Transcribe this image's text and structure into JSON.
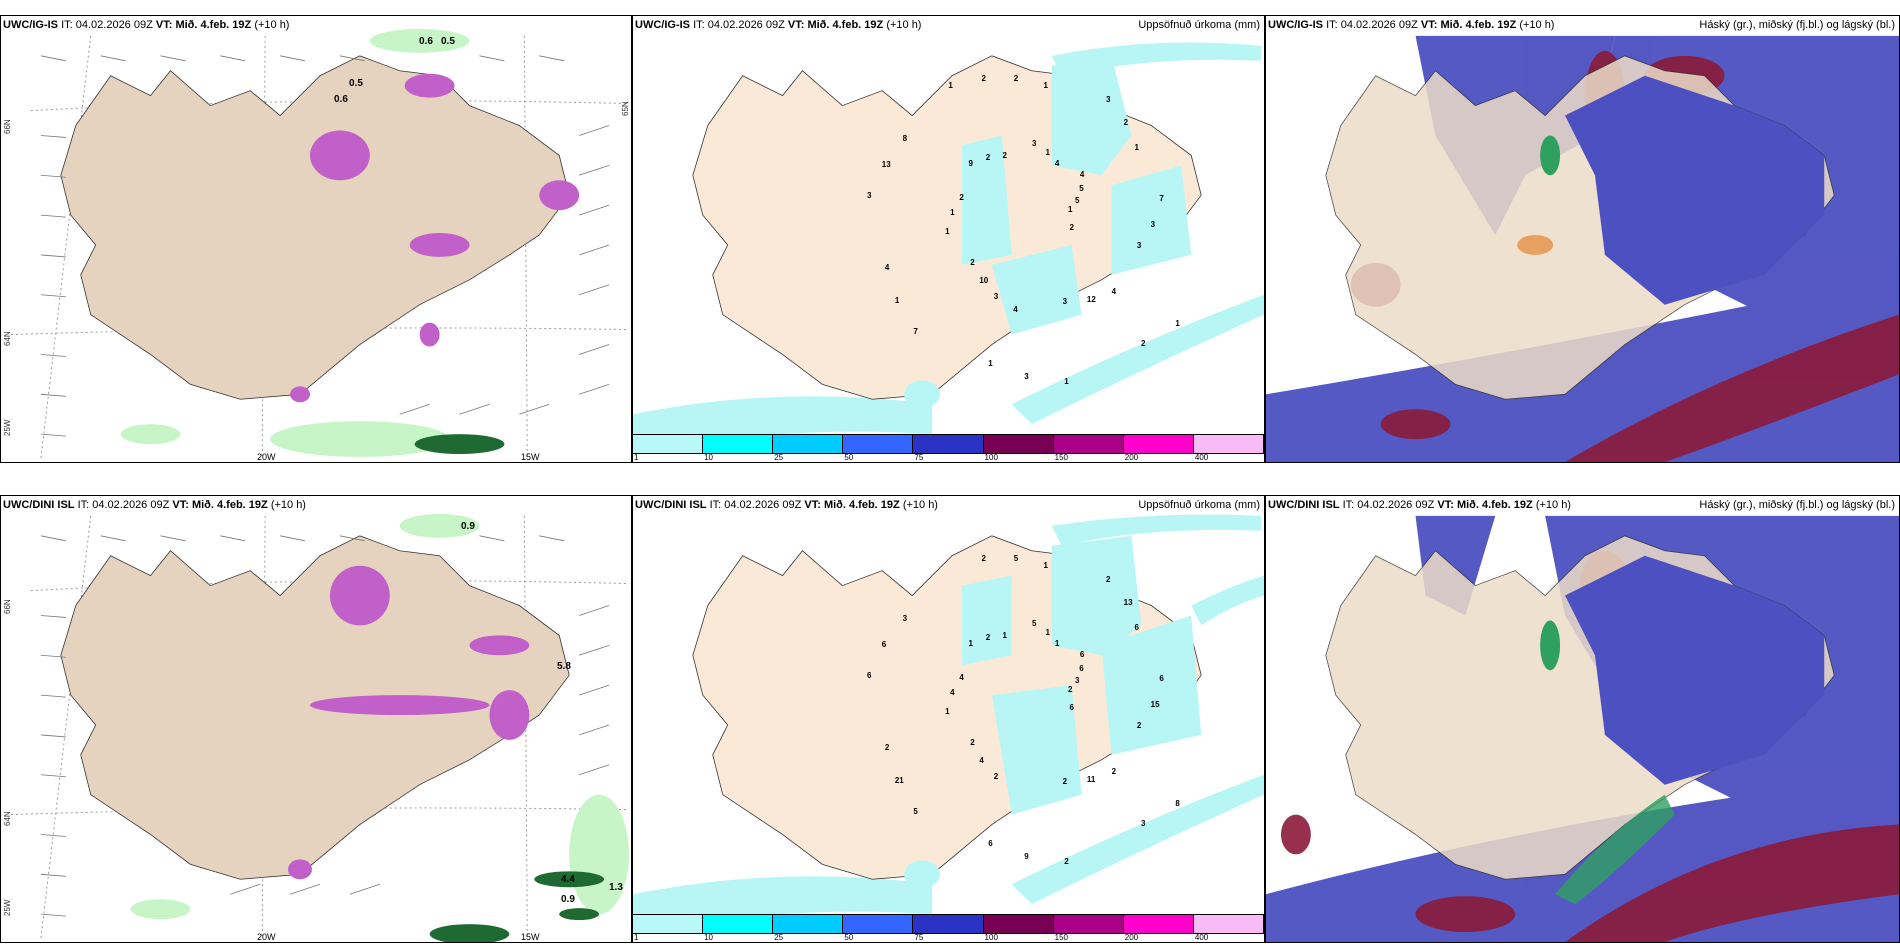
{
  "rows": [
    {
      "model": "UWC/IG-IS",
      "it_label": "IT:",
      "it_value": "04.02.2026 09Z",
      "vt_label": "VT:",
      "vt_value": "Mið. 4.feb. 19Z",
      "lead": "(+10 h)"
    },
    {
      "model": "UWC/DINI ISL",
      "it_label": "IT:",
      "it_value": "04.02.2026 09Z",
      "vt_label": "VT:",
      "vt_value": "Mið. 4.feb. 19Z",
      "lead": "(+10 h)"
    }
  ],
  "panels": {
    "precip_title": "Uppsöfnuð úrkoma (mm)",
    "cloud_title": "Háský (gr.), miðský (fj.bl.) og lágský (bl.)"
  },
  "axes": {
    "lon_20w": "20W",
    "lon_15w": "15W",
    "lat_66n": "66N",
    "lat_64n": "64N",
    "lon_25w": "25W",
    "lat_65n_right": "65N"
  },
  "colorbar": {
    "ticks": [
      "1",
      "10",
      "25",
      "50",
      "75",
      "100",
      "150",
      "200",
      "400"
    ],
    "colors": [
      "#b8f8f8",
      "#00ffff",
      "#00ccff",
      "#3366ff",
      "#2b33c4",
      "#770055",
      "#aa0088",
      "#ff00cc",
      "#f8bbf8"
    ]
  },
  "wind_labels_top": [
    "0.5",
    "0.6",
    "0.5",
    "0.6"
  ],
  "wind_labels_bottom": [
    "0.9",
    "1.3",
    "4.4",
    "0.9",
    "5.8"
  ],
  "precip_labels_top": [
    "1",
    "2",
    "1",
    "2",
    "2",
    "1",
    "1",
    "2",
    "3",
    "4",
    "4",
    "3",
    "8",
    "5",
    "10",
    "2",
    "1",
    "1",
    "2",
    "3",
    "2",
    "3",
    "1",
    "1",
    "12",
    "13",
    "5",
    "3",
    "2",
    "2",
    "1",
    "3",
    "1",
    "9",
    "7",
    "7",
    "3",
    "4",
    "3",
    "4",
    "4",
    "1"
  ],
  "precip_labels_bottom": [
    "2",
    "2",
    "1",
    "3",
    "4",
    "6",
    "6",
    "1",
    "2",
    "2",
    "1",
    "2",
    "3",
    "3",
    "4",
    "5",
    "8",
    "4",
    "13",
    "9",
    "2",
    "15",
    "21",
    "1",
    "11",
    "6",
    "6",
    "2",
    "2",
    "6",
    "1",
    "2",
    "2",
    "1",
    "6",
    "5",
    "5",
    "2",
    "6",
    "6"
  ],
  "cloud_colors": {
    "land": "#ecdcc8",
    "low": "#4c50c0",
    "mid": "#4aa8e8",
    "high": "#8b1a3a",
    "orange": "#e8a060",
    "green": "#30a060"
  }
}
